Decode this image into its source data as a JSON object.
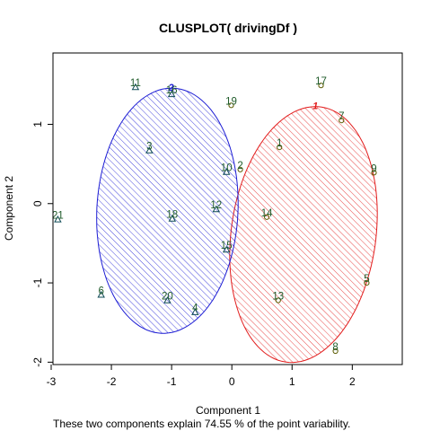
{
  "chart_data": {
    "type": "scatter",
    "title": "CLUSPLOT( drivingDf )",
    "xlabel": "Component 1",
    "ylabel": "Component 2",
    "subtitle": "These two components explain 74.55 % of the point variability.",
    "xlim": [
      -2.97,
      2.83
    ],
    "ylim": [
      -2.03,
      1.9
    ],
    "xticks": [
      -3,
      -2,
      -1,
      0,
      1,
      2
    ],
    "yticks": [
      -2,
      -1,
      0,
      1
    ],
    "grid": false,
    "legend": "none",
    "series": [
      {
        "name": "1",
        "marker": "circle",
        "color": "#e21c1c",
        "ellipse": {
          "cx": 1.19,
          "cy": -0.39,
          "rx": 1.19,
          "ry": 1.64,
          "rotation_deg": -15
        },
        "points": [
          {
            "label": "1",
            "x": 0.79,
            "y": 0.71
          },
          {
            "label": "2",
            "x": 0.14,
            "y": 0.43
          },
          {
            "label": "5",
            "x": 2.24,
            "y": -1.0
          },
          {
            "label": "7",
            "x": 1.82,
            "y": 1.05
          },
          {
            "label": "8",
            "x": 1.72,
            "y": -1.86
          },
          {
            "label": "9",
            "x": 2.36,
            "y": 0.39
          },
          {
            "label": "13",
            "x": 0.77,
            "y": -1.22
          },
          {
            "label": "14",
            "x": 0.58,
            "y": -0.17
          },
          {
            "label": "17",
            "x": 1.48,
            "y": 1.49
          },
          {
            "label": "19",
            "x": -0.01,
            "y": 1.24
          }
        ]
      },
      {
        "name": "2",
        "marker": "triangle",
        "color": "#1c1cd4",
        "ellipse": {
          "cx": -1.07,
          "cy": -0.09,
          "rx": 1.17,
          "ry": 1.55,
          "rotation_deg": -6
        },
        "points": [
          {
            "label": "3",
            "x": -1.37,
            "y": 0.67
          },
          {
            "label": "4",
            "x": -0.61,
            "y": -1.37
          },
          {
            "label": "6",
            "x": -2.17,
            "y": -1.15
          },
          {
            "label": "10",
            "x": -0.09,
            "y": 0.4
          },
          {
            "label": "11",
            "x": -1.6,
            "y": 1.47
          },
          {
            "label": "12",
            "x": -0.26,
            "y": -0.07
          },
          {
            "label": "15",
            "x": -0.09,
            "y": -0.58
          },
          {
            "label": "16",
            "x": -1.0,
            "y": 1.38
          },
          {
            "label": "18",
            "x": -0.99,
            "y": -0.19
          },
          {
            "label": "20",
            "x": -1.07,
            "y": -1.22
          },
          {
            "label": "21",
            "x": -2.89,
            "y": -0.2
          }
        ]
      }
    ]
  }
}
